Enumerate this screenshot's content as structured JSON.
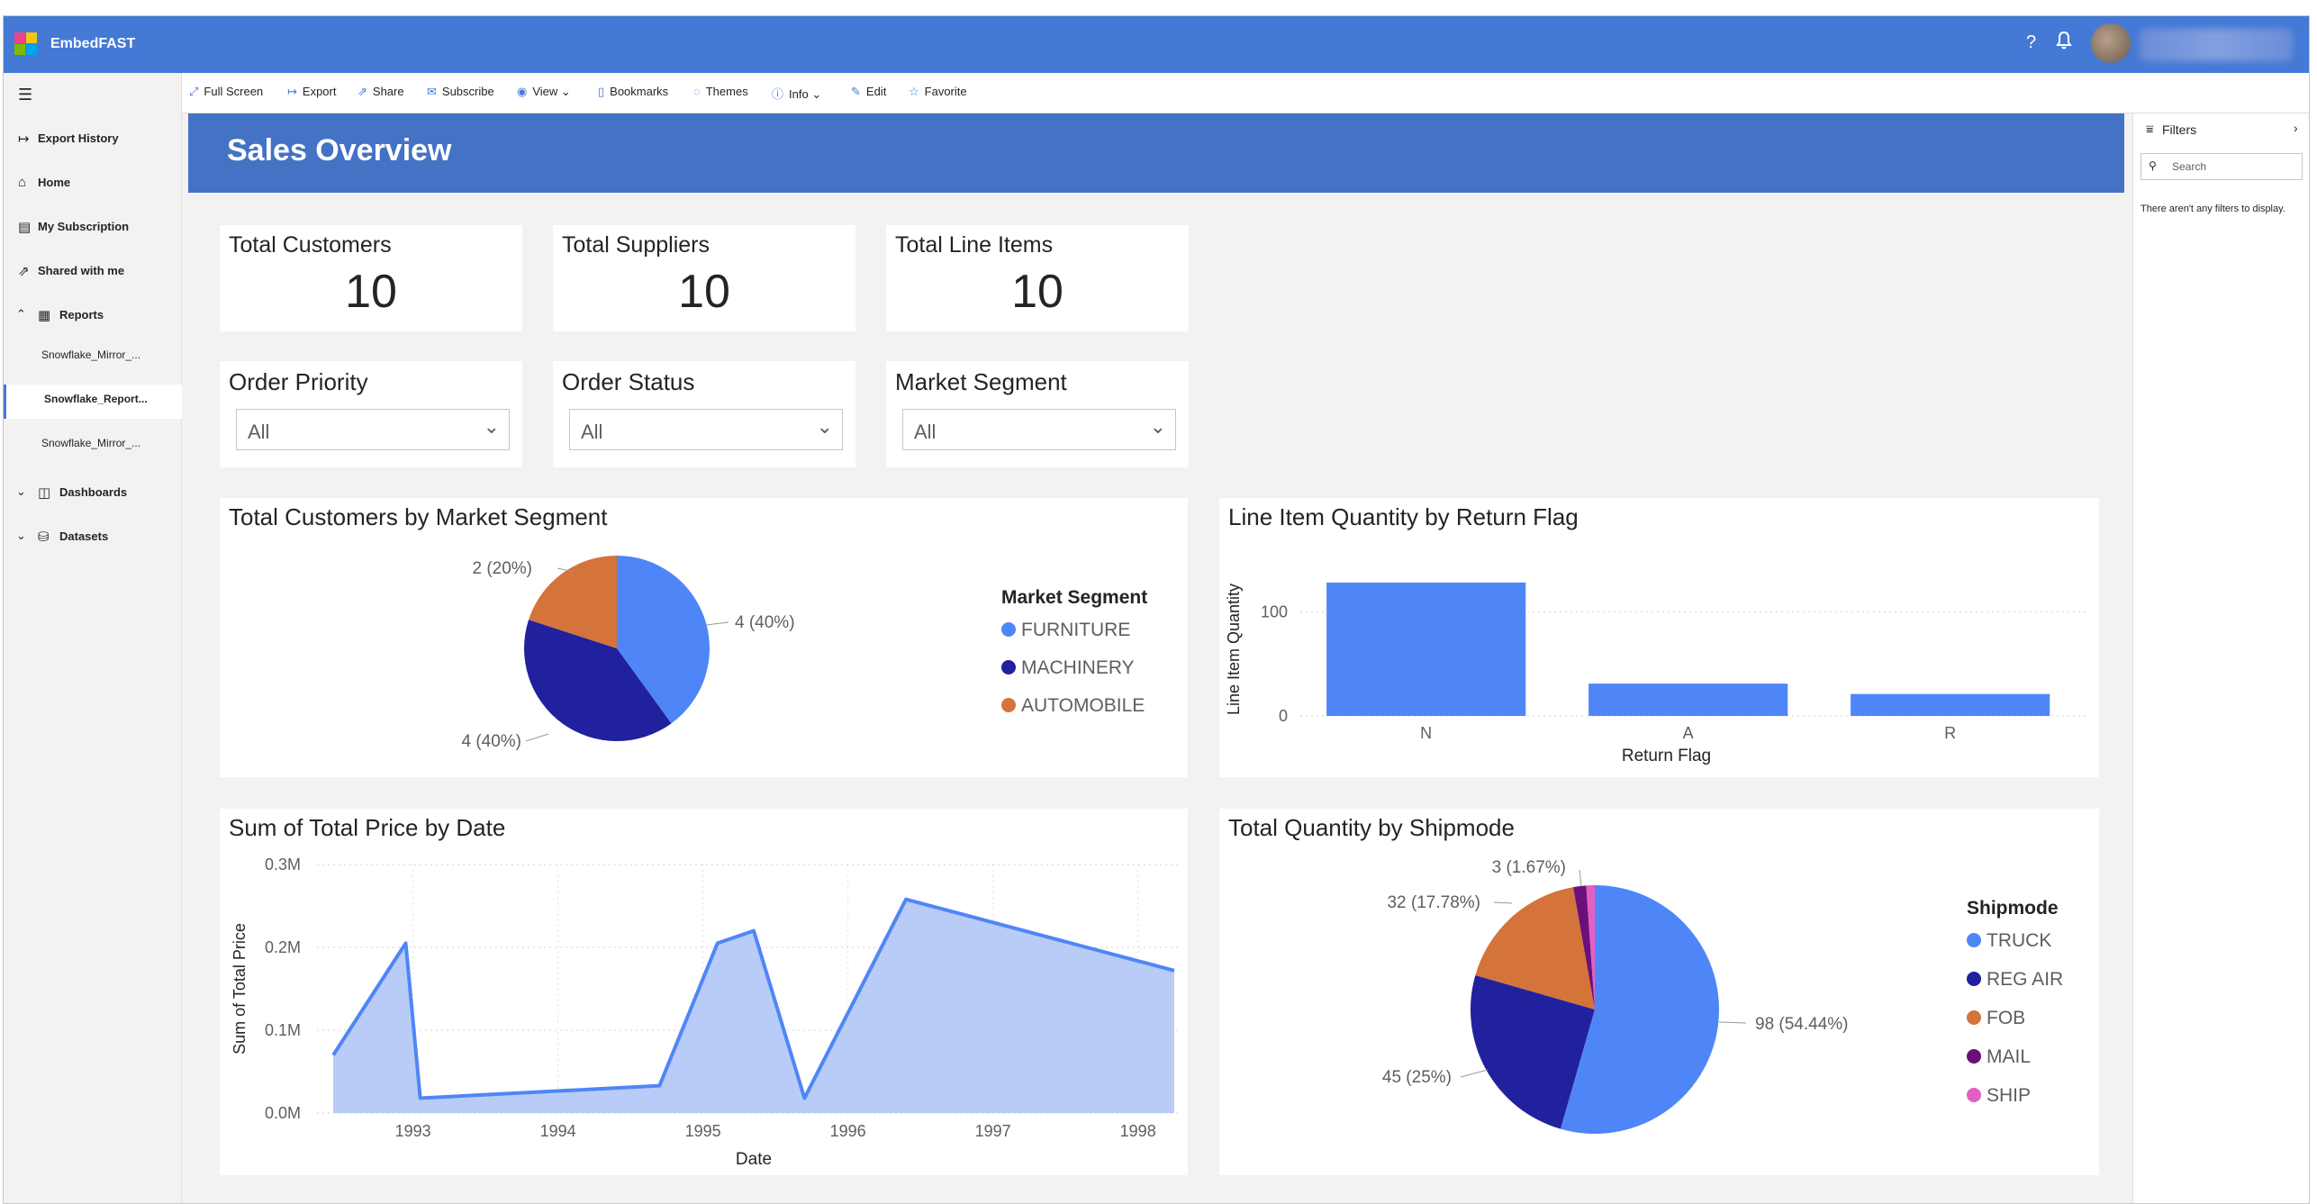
{
  "app": {
    "brand": "EmbedFAST",
    "help_icon": "?",
    "bell_icon": "bell"
  },
  "sidebar": {
    "items": [
      {
        "label": "Export History",
        "icon": "export-arrow-icon"
      },
      {
        "label": "Home",
        "icon": "home-icon"
      },
      {
        "label": "My Subscription",
        "icon": "subscription-icon"
      },
      {
        "label": "Shared with me",
        "icon": "share-icon"
      },
      {
        "label": "Reports",
        "icon": "report-icon"
      },
      {
        "label": "Dashboards",
        "icon": "dashboard-icon"
      },
      {
        "label": "Datasets",
        "icon": "dataset-icon"
      }
    ],
    "reports": [
      "Snowflake_Mirror_...",
      "Snowflake_Report...",
      "Snowflake_Mirror_..."
    ]
  },
  "toolbar": {
    "items": [
      "Full Screen",
      "Export",
      "Share",
      "Subscribe",
      "View",
      "Bookmarks",
      "Themes",
      "Info",
      "Edit",
      "Favorite"
    ]
  },
  "report": {
    "title": "Sales Overview",
    "cards": [
      {
        "label": "Total Customers",
        "value": "10"
      },
      {
        "label": "Total Suppliers",
        "value": "10"
      },
      {
        "label": "Total Line Items",
        "value": "10"
      }
    ],
    "slicers": [
      {
        "label": "Order Priority",
        "value": "All"
      },
      {
        "label": "Order Status",
        "value": "All"
      },
      {
        "label": "Market Segment",
        "value": "All"
      }
    ]
  },
  "filters": {
    "title": "Filters",
    "search_placeholder": "Search",
    "empty_text": "There aren't any filters to display."
  },
  "colors": {
    "blue": "#4f86f7",
    "navy": "#21219e",
    "orange": "#d4733a",
    "purple": "#6b0f7a",
    "pink": "#e35fc2",
    "header": "#4472c4",
    "topbar": "#4479d6"
  },
  "chart_data": [
    {
      "type": "pie",
      "title": "Total Customers by Market Segment",
      "legend_title": "Market Segment",
      "categories": [
        "FURNITURE",
        "MACHINERY",
        "AUTOMOBILE"
      ],
      "values": [
        4,
        4,
        2
      ],
      "labels": [
        "4 (40%)",
        "4 (40%)",
        "2 (20%)"
      ],
      "legend": "right"
    },
    {
      "type": "bar",
      "title": "Line Item Quantity by Return Flag",
      "xlabel": "Return Flag",
      "ylabel": "Line Item Quantity",
      "categories": [
        "N",
        "A",
        "R"
      ],
      "values": [
        128,
        31,
        21
      ],
      "yticks": [
        "0",
        "100"
      ],
      "ylim": [
        0,
        140
      ]
    },
    {
      "type": "area",
      "title": "Sum of Total Price by Date",
      "xlabel": "Date",
      "ylabel": "Sum of Total Price",
      "x": [
        1992.45,
        1992.95,
        1993.05,
        1994.7,
        1995.1,
        1995.35,
        1995.7,
        1996.4,
        1998.25
      ],
      "y": [
        0.07,
        0.205,
        0.018,
        0.033,
        0.205,
        0.22,
        0.018,
        0.258,
        0.172
      ],
      "xticks": [
        "1993",
        "1994",
        "1995",
        "1996",
        "1997",
        "1998"
      ],
      "yticks": [
        "0.0M",
        "0.1M",
        "0.2M",
        "0.3M"
      ],
      "ylim": [
        0,
        0.3
      ],
      "xlim": [
        1992.4,
        1998.3
      ]
    },
    {
      "type": "pie",
      "title": "Total Quantity by Shipmode",
      "legend_title": "Shipmode",
      "categories": [
        "TRUCK",
        "REG AIR",
        "FOB",
        "MAIL",
        "SHIP"
      ],
      "values": [
        98,
        45,
        32,
        3,
        2
      ],
      "labels": [
        "98 (54.44%)",
        "45 (25%)",
        "32 (17.78%)",
        "3 (1.67%)",
        ""
      ],
      "legend": "right"
    }
  ]
}
